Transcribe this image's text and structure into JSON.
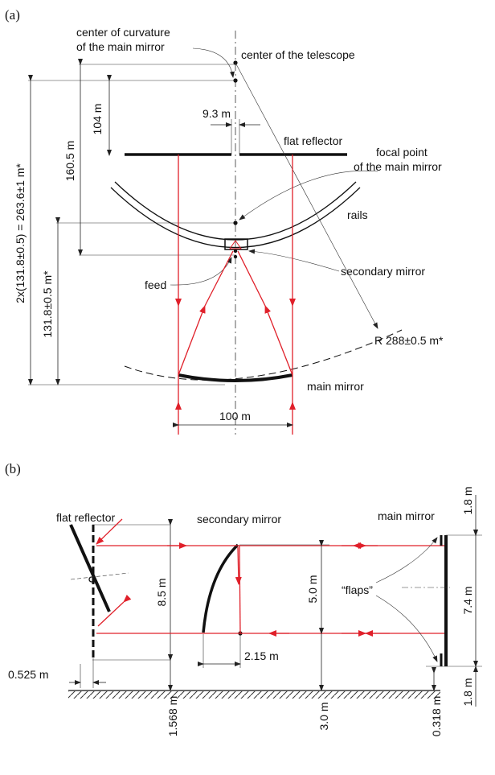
{
  "panel_a": {
    "label": "(a)",
    "center_curvature_1": "center of curvature",
    "center_curvature_2": "of the main mirror",
    "center_telescope": "center of the telescope",
    "dim_104": "104 m",
    "dim_160": "160.5 m",
    "dim_263": "2x(131.8±0.5) = 263.6±1 m*",
    "dim_131": "131.8±0.5 m*",
    "dim_9_3": "9.3 m",
    "flat_reflector": "flat reflector",
    "focal_1": "focal point",
    "focal_2": "of the main mirror",
    "rails": "rails",
    "secondary_mirror": "secondary mirror",
    "feed": "feed",
    "radius": "R 288±0.5 m*",
    "main_mirror": "main mirror",
    "dim_100": "100 m"
  },
  "panel_b": {
    "label": "(b)",
    "flat_reflector": "flat reflector",
    "secondary_mirror": "secondary mirror",
    "main_mirror": "main mirror",
    "dim_1_8_top": "1.8 m",
    "dim_7_4": "7.4 m",
    "dim_1_8_bottom": "1.8 m",
    "dim_8_5": "8.5 m",
    "dim_5_0": "5.0 m",
    "flaps": "“flaps”",
    "dim_2_15": "2.15 m",
    "dim_0_525": "0.525 m",
    "dim_1_568": "1.568 m",
    "dim_3_0": "3.0 m",
    "dim_0_318": "0.318 m"
  },
  "colors": {
    "ray": "#e0202a",
    "ink": "#111111"
  }
}
